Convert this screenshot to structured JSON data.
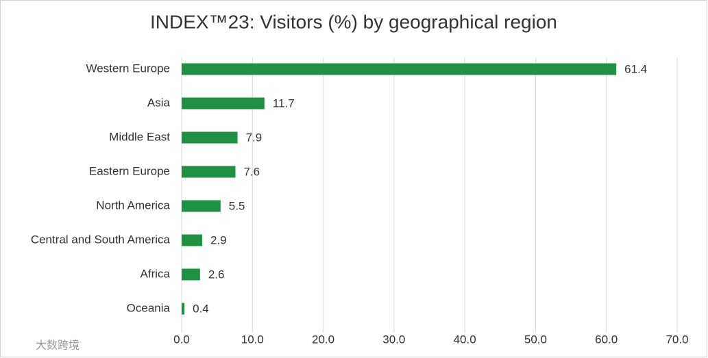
{
  "chart_data": {
    "type": "bar",
    "orientation": "horizontal",
    "title": "INDEX™23: Visitors (%) by geographical region",
    "categories": [
      "Western Europe",
      "Asia",
      "Middle East",
      "Eastern Europe",
      "North America",
      "Central and South America",
      "Africa",
      "Oceania"
    ],
    "values": [
      61.4,
      11.7,
      7.9,
      7.6,
      5.5,
      2.9,
      2.6,
      0.4
    ],
    "color": "#1e9142",
    "xlim": [
      0,
      70
    ],
    "xticks": [
      {
        "value": 0,
        "label": "0.0"
      },
      {
        "value": 10,
        "label": "10.0"
      },
      {
        "value": 20,
        "label": "20.0"
      },
      {
        "value": 30,
        "label": "30.0"
      },
      {
        "value": 40,
        "label": "40.0"
      },
      {
        "value": 50,
        "label": "50.0"
      },
      {
        "value": 60,
        "label": "60.0"
      },
      {
        "value": 70,
        "label": "70.0"
      }
    ],
    "grid": true
  },
  "watermark": "大数跨境"
}
